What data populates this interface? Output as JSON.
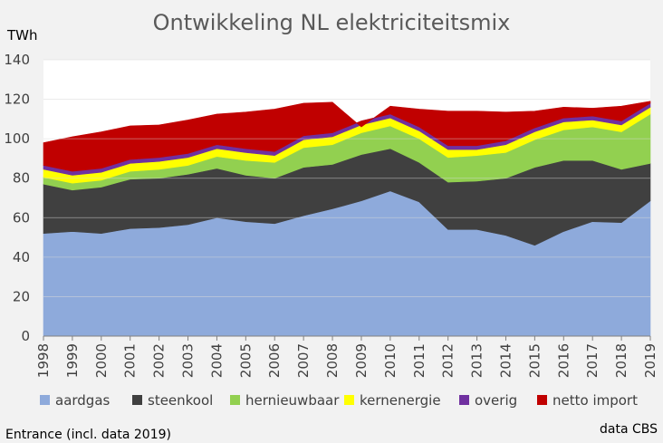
{
  "chart_data": {
    "type": "area",
    "stacked": true,
    "title": "Ontwikkeling NL elektriciteitsmix",
    "ylabel": "TWh",
    "xlabel": "",
    "ylim": [
      0,
      140
    ],
    "yticks": [
      0,
      20,
      40,
      60,
      80,
      100,
      120,
      140
    ],
    "grid": true,
    "legend_position": "bottom",
    "categories": [
      "1998",
      "1999",
      "2000",
      "2001",
      "2002",
      "2003",
      "2004",
      "2005",
      "2006",
      "2007",
      "2008",
      "2009",
      "2010",
      "2011",
      "2012",
      "2013",
      "2014",
      "2015",
      "2016",
      "2017",
      "2018",
      "2019"
    ],
    "series": [
      {
        "name": "aardgas",
        "color": "#8eaadb",
        "values": [
          52,
          53,
          52,
          54.5,
          55,
          56.5,
          60,
          58,
          57,
          61,
          64.5,
          68.5,
          73.5,
          68,
          54,
          54,
          51,
          46,
          53,
          58,
          57.5,
          68.5
        ]
      },
      {
        "name": "steenkool",
        "color": "#404040",
        "values": [
          25,
          21,
          23.5,
          25,
          25,
          25.5,
          25,
          23.5,
          23,
          24.5,
          22.5,
          23.5,
          21.5,
          20,
          24,
          24.5,
          29,
          39.5,
          36,
          31,
          27,
          19
        ]
      },
      {
        "name": "hernieuwbaar",
        "color": "#92d050",
        "values": [
          3.5,
          3.5,
          3.5,
          4,
          4.5,
          4.5,
          6,
          7.5,
          8,
          10,
          10,
          11,
          11.5,
          12,
          12.5,
          13,
          13,
          14,
          15.5,
          17,
          19,
          25
        ]
      },
      {
        "name": "kernenergie",
        "color": "#ffff00",
        "values": [
          4,
          4,
          4,
          4,
          4,
          4,
          4,
          4,
          3.5,
          4,
          4,
          4,
          4,
          4,
          4,
          3,
          4,
          4,
          4,
          3.5,
          3.5,
          3.5
        ]
      },
      {
        "name": "overig",
        "color": "#7030a0",
        "values": [
          2,
          2,
          2,
          2,
          2,
          2,
          2,
          2,
          2,
          2,
          2,
          2,
          2,
          2,
          2,
          2,
          2,
          2,
          2,
          2,
          2,
          2
        ]
      },
      {
        "name": "netto import",
        "color": "#c00000",
        "values": [
          11.5,
          17.5,
          18.5,
          17,
          16.5,
          17,
          15.5,
          18.5,
          21.5,
          16.5,
          15.5,
          -3,
          4,
          9,
          17.5,
          17.5,
          14.5,
          8.5,
          5.5,
          4,
          7.5,
          1
        ]
      }
    ]
  },
  "footer": {
    "left": "Entrance  (incl. data 2019)",
    "right": "data CBS"
  }
}
